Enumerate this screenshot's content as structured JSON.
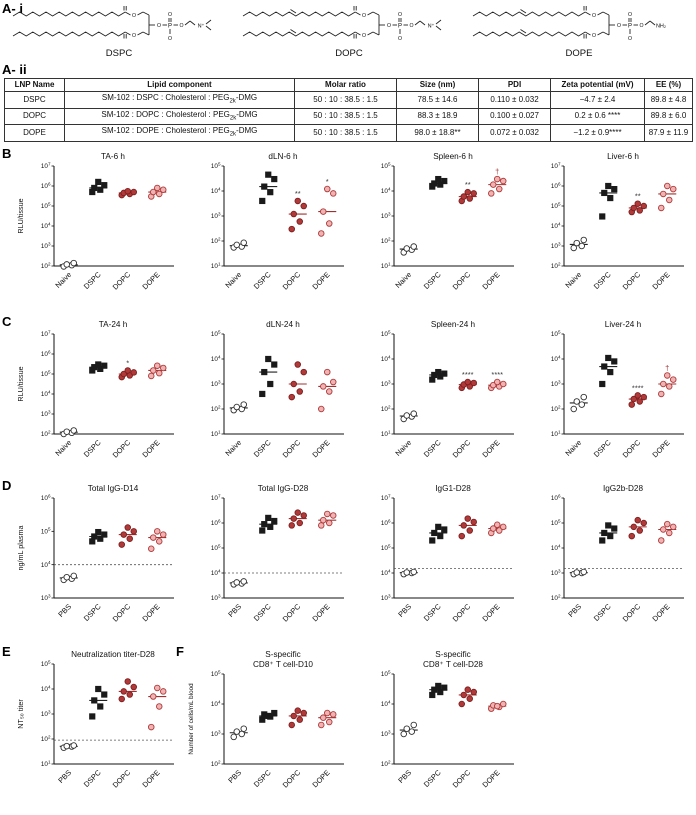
{
  "panel_labels": {
    "a1": "A- i",
    "a2": "A- ii",
    "b": "B",
    "c": "C",
    "d": "D",
    "e": "E",
    "f": "F"
  },
  "panels": {
    "a1": {
      "structures": [
        {
          "name": "DSPC",
          "unsaturated": false,
          "head": "N⁺",
          "head_branches": true
        },
        {
          "name": "DOPC",
          "unsaturated": true,
          "head": "N⁺",
          "head_branches": true
        },
        {
          "name": "DOPE",
          "unsaturated": true,
          "head": "NH₂",
          "head_branches": false
        }
      ],
      "atoms": {
        "oxygen": "O",
        "phosphorus": "P"
      }
    },
    "a2": {
      "headers": [
        "LNP Name",
        "Lipid component",
        "Molar ratio",
        "Size (nm)",
        "PDI",
        "Zeta potential (mV)",
        "EE (%)"
      ],
      "rows": [
        {
          "name": "DSPC",
          "comp_pre": "SM-102 : DSPC : Cholesterol : PEG",
          "comp_sub": "2k",
          "comp_post": "-DMG",
          "ratio": "50 : 10 : 38.5 : 1.5",
          "size": "78.5 ± 14.6",
          "pdi": "0.110 ± 0.032",
          "zeta": "−4.7 ± 2.4",
          "ee": "89.8 ± 4.8"
        },
        {
          "name": "DOPC",
          "comp_pre": "SM-102 : DOPC : Cholesterol : PEG",
          "comp_sub": "2k",
          "comp_post": "-DMG",
          "ratio": "50 : 10 : 38.5 : 1.5",
          "size": "88.3 ± 18.9",
          "pdi": "0.100 ± 0.027",
          "zeta": "0.2 ± 0.6 ****",
          "ee": "89.8 ± 6.0"
        },
        {
          "name": "DOPE",
          "comp_pre": "SM-102 : DOPE : Cholesterol : PEG",
          "comp_sub": "2k",
          "comp_post": "-DMG",
          "ratio": "50 : 10 : 38.5 : 1.5",
          "size": "98.0 ± 18.8**",
          "pdi": "0.072 ± 0.032",
          "zeta": "−1.2 ± 0.9****",
          "ee": "87.9 ± 11.9"
        }
      ]
    }
  },
  "group_styles": {
    "Naive": {
      "marker": "circle",
      "fill": "#ffffff",
      "stroke": "#333333",
      "median": "#222222"
    },
    "PBS": {
      "marker": "circle",
      "fill": "#ffffff",
      "stroke": "#333333",
      "median": "#222222"
    },
    "DSPC": {
      "marker": "square",
      "fill": "#1a1a1a",
      "stroke": "#1a1a1a",
      "median": "#222222"
    },
    "DOPC": {
      "marker": "circle",
      "fill": "#b03a3a",
      "stroke": "#7f1f1f",
      "median": "#a03030"
    },
    "DOPE": {
      "marker": "circle",
      "fill": "#efb3b3",
      "stroke": "#b03a3a",
      "median": "#a03030"
    }
  },
  "chart_data": [
    {
      "type": "scatter",
      "panel": "B",
      "title": "TA-6 h",
      "ylabel": "RLU/tissue",
      "ylog": true,
      "ydecades": [
        2,
        7
      ],
      "categories": [
        "Naive",
        "DSPC",
        "DOPC",
        "DOPE"
      ],
      "values": {
        "Naive": [
          95,
          110,
          120,
          140
        ],
        "DSPC": [
          500000,
          650000,
          800000,
          1100000,
          1600000
        ],
        "DOPC": [
          350000,
          400000,
          450000,
          500000,
          550000
        ],
        "DOPE": [
          300000,
          400000,
          500000,
          650000,
          800000
        ]
      },
      "annotations": {}
    },
    {
      "type": "scatter",
      "panel": "B",
      "title": "dLN-6 h",
      "ylabel": "",
      "ylog": true,
      "ydecades": [
        1,
        5
      ],
      "categories": [
        "Naive",
        "DSPC",
        "DOPC",
        "DOPE"
      ],
      "values": {
        "Naive": [
          55,
          60,
          70,
          85
        ],
        "DSPC": [
          4000,
          9000,
          15000,
          30000,
          45000
        ],
        "DOPC": [
          300,
          600,
          1200,
          2500,
          4000
        ],
        "DOPE": [
          200,
          500,
          1500,
          8000,
          12000
        ]
      },
      "annotations": {
        "DOPC": "**",
        "DOPE": "*"
      }
    },
    {
      "type": "scatter",
      "panel": "B",
      "title": "Spleen-6 h",
      "ylabel": "",
      "ylog": true,
      "ydecades": [
        1,
        5
      ],
      "categories": [
        "Naive",
        "DSPC",
        "DOPC",
        "DOPE"
      ],
      "values": {
        "Naive": [
          35,
          45,
          50,
          60
        ],
        "DSPC": [
          15000,
          18000,
          20000,
          25000,
          30000
        ],
        "DOPC": [
          4000,
          5000,
          6000,
          8000,
          9000
        ],
        "DOPE": [
          8000,
          12000,
          18000,
          25000,
          30000
        ]
      },
      "annotations": {
        "DOPC": "**",
        "DOPE": "†"
      }
    },
    {
      "type": "scatter",
      "panel": "B",
      "title": "Liver-6 h",
      "ylabel": "",
      "ylog": true,
      "ydecades": [
        2,
        7
      ],
      "categories": [
        "Naive",
        "DSPC",
        "DOPC",
        "DOPE"
      ],
      "values": {
        "Naive": [
          800,
          1000,
          1400,
          2000
        ],
        "DSPC": [
          30000,
          250000,
          450000,
          700000,
          1000000
        ],
        "DOPC": [
          50000,
          60000,
          80000,
          100000,
          130000
        ],
        "DOPE": [
          80000,
          200000,
          400000,
          700000,
          1000000
        ]
      },
      "annotations": {
        "DOPC": "**"
      }
    },
    {
      "type": "scatter",
      "panel": "C",
      "title": "TA-24 h",
      "ylabel": "RLU/tissue",
      "ylog": true,
      "ydecades": [
        2,
        7
      ],
      "categories": [
        "Naive",
        "DSPC",
        "DOPC",
        "DOPE"
      ],
      "values": {
        "Naive": [
          100,
          115,
          130,
          150
        ],
        "DSPC": [
          150000,
          180000,
          220000,
          260000,
          300000
        ],
        "DOPC": [
          70000,
          85000,
          100000,
          120000,
          150000
        ],
        "DOPE": [
          80000,
          110000,
          150000,
          200000,
          260000
        ]
      },
      "annotations": {
        "DOPC": "*"
      }
    },
    {
      "type": "scatter",
      "panel": "C",
      "title": "dLN-24 h",
      "ylabel": "",
      "ylog": true,
      "ydecades": [
        1,
        5
      ],
      "categories": [
        "Naive",
        "DSPC",
        "DOPC",
        "DOPE"
      ],
      "values": {
        "Naive": [
          90,
          100,
          120,
          150
        ],
        "DSPC": [
          400,
          1000,
          3000,
          6000,
          10000
        ],
        "DOPC": [
          300,
          500,
          1000,
          3000,
          6000
        ],
        "DOPE": [
          100,
          500,
          800,
          1200,
          3000
        ]
      },
      "annotations": {}
    },
    {
      "type": "scatter",
      "panel": "C",
      "title": "Spleen-24 h",
      "ylabel": "",
      "ylog": true,
      "ydecades": [
        1,
        5
      ],
      "categories": [
        "Naive",
        "DSPC",
        "DOPC",
        "DOPE"
      ],
      "values": {
        "Naive": [
          40,
          50,
          55,
          65
        ],
        "DSPC": [
          1500,
          2000,
          2300,
          2600,
          3000
        ],
        "DOPC": [
          700,
          800,
          950,
          1100,
          1200
        ],
        "DOPE": [
          700,
          800,
          900,
          1000,
          1200
        ]
      },
      "annotations": {
        "DOPC": "****",
        "DOPE": "****"
      }
    },
    {
      "type": "scatter",
      "panel": "C",
      "title": "Liver-24 h",
      "ylabel": "",
      "ylog": true,
      "ydecades": [
        1,
        5
      ],
      "categories": [
        "Naive",
        "DSPC",
        "DOPC",
        "DOPE"
      ],
      "values": {
        "Naive": [
          100,
          150,
          200,
          300
        ],
        "DSPC": [
          1000,
          3000,
          5000,
          8000,
          11000
        ],
        "DOPC": [
          150,
          200,
          250,
          300,
          350
        ],
        "DOPE": [
          400,
          800,
          1000,
          1500,
          2200
        ]
      },
      "annotations": {
        "DOPC": "****",
        "DOPE": "†"
      }
    },
    {
      "type": "scatter",
      "panel": "D",
      "title": "Total IgG-D14",
      "ylabel": "ng/mL plasma",
      "ylog": true,
      "ydecades": [
        3,
        6
      ],
      "dashed_line": 10000,
      "categories": [
        "PBS",
        "DSPC",
        "DOPC",
        "DOPE"
      ],
      "values": {
        "PBS": [
          3500,
          3800,
          4200,
          4600
        ],
        "DSPC": [
          50000,
          60000,
          70000,
          80000,
          95000
        ],
        "DOPC": [
          40000,
          60000,
          80000,
          100000,
          130000
        ],
        "DOPE": [
          30000,
          50000,
          65000,
          80000,
          100000
        ]
      },
      "annotations": {}
    },
    {
      "type": "scatter",
      "panel": "D",
      "title": "Total IgG-D28",
      "ylabel": "",
      "ylog": true,
      "ydecades": [
        3,
        7
      ],
      "dashed_line": 10000,
      "categories": [
        "PBS",
        "DSPC",
        "DOPC",
        "DOPE"
      ],
      "values": {
        "PBS": [
          3500,
          3800,
          4200,
          4600
        ],
        "DSPC": [
          500000,
          700000,
          900000,
          1200000,
          1600000
        ],
        "DOPC": [
          800000,
          1000000,
          1500000,
          2000000,
          2600000
        ],
        "DOPE": [
          800000,
          1000000,
          1300000,
          2000000,
          2300000
        ]
      },
      "annotations": {}
    },
    {
      "type": "scatter",
      "panel": "D",
      "title": "IgG1-D28",
      "ylabel": "",
      "ylog": true,
      "ydecades": [
        3,
        7
      ],
      "dashed_line": 15000,
      "categories": [
        "PBS",
        "DSPC",
        "DOPC",
        "DOPE"
      ],
      "values": {
        "PBS": [
          9000,
          10000,
          10500,
          11000
        ],
        "DSPC": [
          200000,
          300000,
          400000,
          550000,
          700000
        ],
        "DOPC": [
          300000,
          500000,
          800000,
          1100000,
          1500000
        ],
        "DOPE": [
          400000,
          500000,
          600000,
          700000,
          850000
        ]
      },
      "annotations": {}
    },
    {
      "type": "scatter",
      "panel": "D",
      "title": "IgG2b-D28",
      "ylabel": "",
      "ylog": true,
      "ydecades": [
        2,
        6
      ],
      "dashed_line": 1500,
      "categories": [
        "PBS",
        "DSPC",
        "DOPC",
        "DOPE"
      ],
      "values": {
        "PBS": [
          900,
          1000,
          1050,
          1100
        ],
        "DSPC": [
          20000,
          30000,
          40000,
          60000,
          80000
        ],
        "DOPC": [
          30000,
          50000,
          70000,
          100000,
          130000
        ],
        "DOPE": [
          20000,
          40000,
          55000,
          70000,
          90000
        ]
      },
      "annotations": {}
    },
    {
      "type": "scatter",
      "panel": "E",
      "title": "Neutralization titer-D28",
      "ylabel": "NT₅₀ titer",
      "ylog": true,
      "ydecades": [
        1,
        5
      ],
      "dashed_line": 90,
      "categories": [
        "PBS",
        "DSPC",
        "DOPC",
        "DOPE"
      ],
      "values": {
        "PBS": [
          45,
          50,
          52,
          55
        ],
        "DSPC": [
          800,
          2000,
          3500,
          6000,
          10000
        ],
        "DOPC": [
          4000,
          6000,
          8000,
          12000,
          20000
        ],
        "DOPE": [
          300,
          2000,
          5000,
          8000,
          11000
        ]
      },
      "annotations": {}
    },
    {
      "type": "scatter",
      "panel": "F",
      "title": [
        "S-specific",
        "CD8⁺ T cell-D10"
      ],
      "ylabel": "Number of cells/mL blood",
      "ylog": true,
      "ydecades": [
        2,
        5
      ],
      "categories": [
        "PBS",
        "DSPC",
        "DOPC",
        "DOPE"
      ],
      "values": {
        "PBS": [
          800,
          1000,
          1200,
          1500
        ],
        "DSPC": [
          3000,
          3800,
          4500,
          5000,
          4000
        ],
        "DOPC": [
          2000,
          3000,
          4000,
          5000,
          6000
        ],
        "DOPE": [
          2000,
          2500,
          3500,
          4500,
          5000
        ]
      },
      "annotations": {}
    },
    {
      "type": "scatter",
      "panel": "F",
      "title": [
        "S-specific",
        "CD8⁺ T cell-D28"
      ],
      "ylabel": "",
      "ylog": true,
      "ydecades": [
        2,
        5
      ],
      "categories": [
        "PBS",
        "DSPC",
        "DOPC",
        "DOPE"
      ],
      "values": {
        "PBS": [
          1000,
          1200,
          1500,
          2000
        ],
        "DSPC": [
          20000,
          25000,
          30000,
          35000,
          40000
        ],
        "DOPC": [
          10000,
          15000,
          20000,
          25000,
          30000
        ],
        "DOPE": [
          7000,
          8000,
          9000,
          10000,
          8500
        ]
      },
      "annotations": {}
    }
  ]
}
